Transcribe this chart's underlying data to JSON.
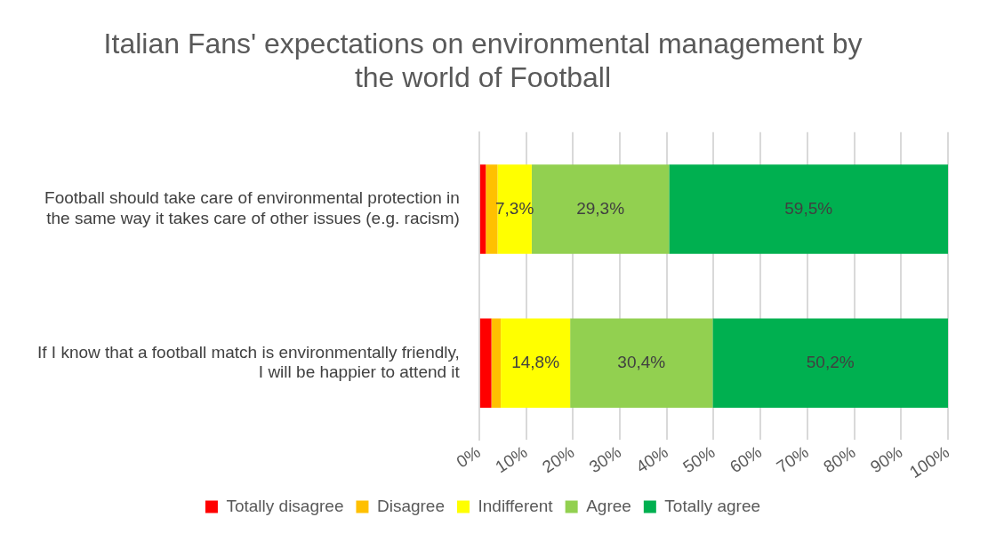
{
  "chart_data": {
    "type": "bar",
    "orientation": "horizontal",
    "stacked": true,
    "title": "Italian Fans' expectations on environmental management by the world of Football",
    "categories": [
      "Football should take care of environmental protection in the same way it takes care of other issues (e.g. racism)",
      "If I know that a football match is environmentally friendly, I will be happier to attend it"
    ],
    "series": [
      {
        "name": "Totally disagree",
        "color": "#ff0000",
        "values": [
          1.4,
          2.6
        ]
      },
      {
        "name": "Disagree",
        "color": "#ffc000",
        "values": [
          2.5,
          2.0
        ]
      },
      {
        "name": "Indifferent",
        "color": "#ffff00",
        "values": [
          7.3,
          14.8
        ],
        "value_labels": [
          "7,3%",
          "14,8%"
        ]
      },
      {
        "name": "Agree",
        "color": "#92d050",
        "values": [
          29.3,
          30.4
        ],
        "value_labels": [
          "29,3%",
          "30,4%"
        ]
      },
      {
        "name": "Totally agree",
        "color": "#00b050",
        "values": [
          59.5,
          50.2
        ],
        "value_labels": [
          "59,5%",
          "50,2%"
        ]
      }
    ],
    "xlim": [
      0,
      100
    ],
    "xticks": [
      {
        "value": 0,
        "label": "0%"
      },
      {
        "value": 10,
        "label": "10%"
      },
      {
        "value": 20,
        "label": "20%"
      },
      {
        "value": 30,
        "label": "30%"
      },
      {
        "value": 40,
        "label": "40%"
      },
      {
        "value": 50,
        "label": "50%"
      },
      {
        "value": 60,
        "label": "60%"
      },
      {
        "value": 70,
        "label": "70%"
      },
      {
        "value": 80,
        "label": "80%"
      },
      {
        "value": 90,
        "label": "90%"
      },
      {
        "value": 100,
        "label": "100%"
      }
    ],
    "grid": "x",
    "legend": "bottom"
  }
}
